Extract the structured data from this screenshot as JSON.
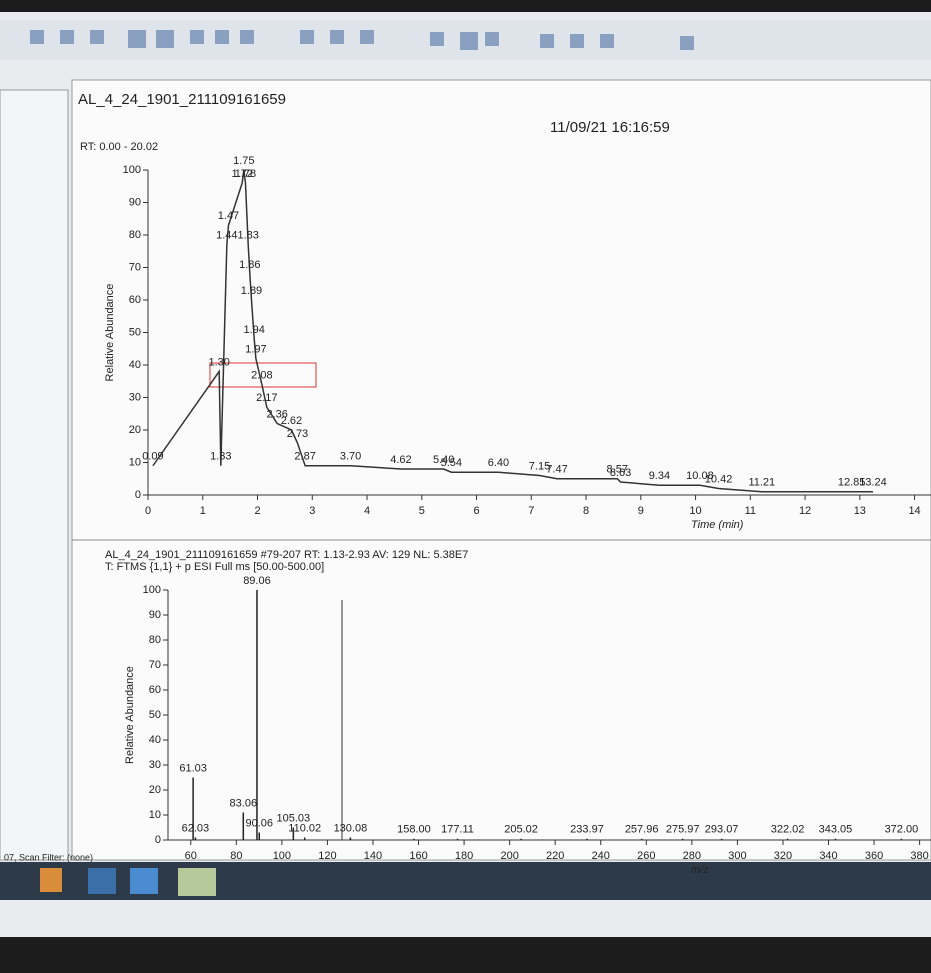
{
  "window": {
    "file_title": "AL_4_24_1901_211109161659",
    "date": "11/09/21 16:16:59",
    "status": "07, Scan Filter: (none)"
  },
  "chart_data": [
    {
      "type": "line",
      "title": "RT: 0.00 - 20.02",
      "x_label": "Time (min)",
      "y_label": "Relative Abundance",
      "color": "#333333",
      "x": [
        0.09,
        1.3,
        1.33,
        1.44,
        1.47,
        1.72,
        1.75,
        1.78,
        1.83,
        1.86,
        1.89,
        1.94,
        1.97,
        2.08,
        2.17,
        2.36,
        2.62,
        2.73,
        2.87,
        3.7,
        4.62,
        5.4,
        5.54,
        6.4,
        7.15,
        7.47,
        8.57,
        8.63,
        9.34,
        10.08,
        10.42,
        11.21,
        12.85,
        13.24
      ],
      "x_labels": [
        "0.09",
        "1.30",
        "1.33",
        "1.44",
        "1.47",
        "1.72",
        "1.75",
        "1.78",
        "1.83",
        "1.86",
        "1.89",
        "1.94",
        "1.97",
        "2.08",
        "2.17",
        "2.36",
        "2.62",
        "2.73",
        "2.87",
        "3.70",
        "4.62",
        "5.40",
        "5.54",
        "6.40",
        "7.15",
        "7.47",
        "8.57",
        "8.63",
        "9.34",
        "10.08",
        "10.42",
        "11.21",
        "12.85",
        "13.24"
      ],
      "values": [
        9,
        38,
        9,
        77,
        83,
        96,
        100,
        96,
        77,
        68,
        60,
        48,
        42,
        34,
        27,
        22,
        20,
        16,
        9,
        9,
        8,
        8,
        7,
        7,
        6,
        5,
        5,
        4,
        3,
        3,
        2,
        1,
        1,
        1
      ],
      "xlim": [
        0,
        14.3
      ],
      "xticks": [
        0,
        1,
        2,
        3,
        4,
        5,
        6,
        7,
        8,
        9,
        10,
        11,
        12,
        13,
        14
      ],
      "ylim": [
        0,
        100
      ],
      "yticks": [
        0,
        10,
        20,
        30,
        40,
        50,
        60,
        70,
        80,
        90,
        100
      ]
    },
    {
      "type": "stick",
      "title": "AL_4_24_1901_211109161659 #79-207  RT: 1.13-2.93  AV: 129  NL: 5.38E7",
      "subtitle": "T: FTMS {1,1}  + p ESI Full ms [50.00-500.00]",
      "x_label": "m/z",
      "y_label": "Relative Abundance",
      "color": "#222222",
      "x": [
        61.03,
        62.03,
        83.06,
        89.06,
        90.06,
        105.03,
        110.02,
        130.08,
        158.0,
        177.11,
        205.02,
        233.97,
        257.96,
        275.97,
        293.07,
        322.02,
        343.05,
        372.0
      ],
      "x_labels": [
        "61.03",
        "62.03",
        "83.06",
        "89.06",
        "90.06",
        "105.03",
        "110.02",
        "130.08",
        "158.00",
        "177.11",
        "205.02",
        "233.97",
        "257.96",
        "275.97",
        "293.07",
        "322.02",
        "343.05",
        "372.00"
      ],
      "values": [
        25,
        1,
        11,
        100,
        3,
        5,
        1,
        1,
        0.5,
        0.5,
        0.5,
        0.5,
        0.5,
        0.5,
        0.5,
        0.5,
        0.5,
        0.5
      ],
      "xlim": [
        50,
        385
      ],
      "xticks": [
        60,
        80,
        100,
        120,
        140,
        160,
        180,
        200,
        220,
        240,
        260,
        280,
        300,
        320,
        340,
        360,
        380
      ],
      "ylim": [
        0,
        100
      ],
      "yticks": [
        0,
        10,
        20,
        30,
        40,
        50,
        60,
        70,
        80,
        90,
        100
      ]
    }
  ]
}
